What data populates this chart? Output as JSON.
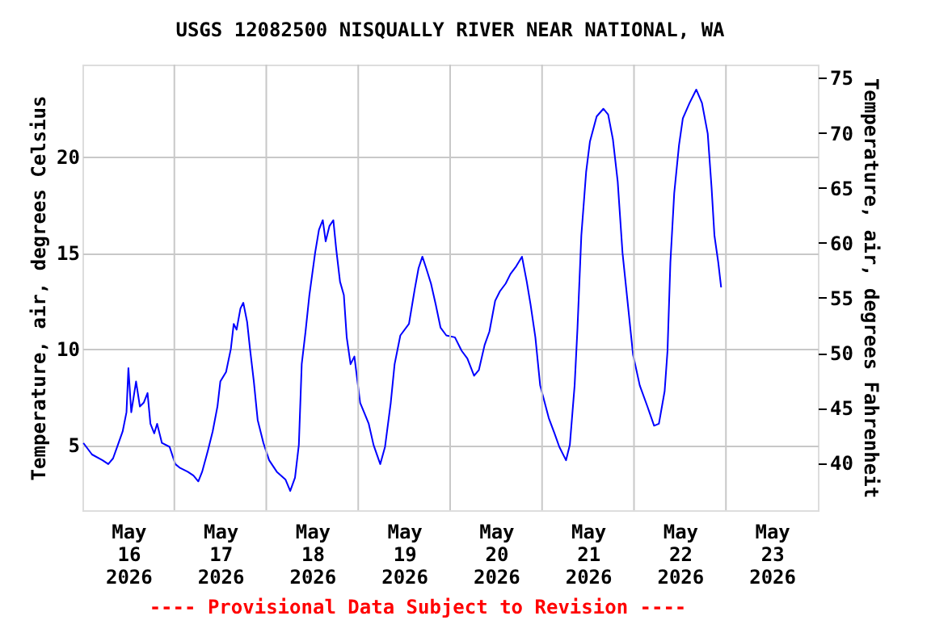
{
  "chart_data": {
    "type": "line",
    "title": "USGS 12082500 NISQUALLY RIVER NEAR NATIONAL, WA",
    "ylabel": "Temperature, air, degrees Celsius",
    "y2label": "Temperature, air, degrees Fahrenheit",
    "annotations": [
      "---- Provisional Data Subject to Revision ----"
    ],
    "xlim": [
      "2026-05-16T00:00",
      "2026-05-24T00:00"
    ],
    "xticks": [
      {
        "value": "2026-05-16T12:00",
        "label": "May\n16\n2026"
      },
      {
        "value": "2026-05-17T12:00",
        "label": "May\n17\n2026"
      },
      {
        "value": "2026-05-18T12:00",
        "label": "May\n18\n2026"
      },
      {
        "value": "2026-05-19T12:00",
        "label": "May\n19\n2026"
      },
      {
        "value": "2026-05-20T12:00",
        "label": "May\n20\n2026"
      },
      {
        "value": "2026-05-21T12:00",
        "label": "May\n21\n2026"
      },
      {
        "value": "2026-05-22T12:00",
        "label": "May\n22\n2026"
      },
      {
        "value": "2026-05-23T12:00",
        "label": "May\n23\n2026"
      },
      {
        "value": "2026-05-17T00:00",
        "label": null
      },
      {
        "value": "2026-05-18T00:00",
        "label": null
      },
      {
        "value": "2026-05-19T00:00",
        "label": null
      },
      {
        "value": "2026-05-20T00:00",
        "label": null
      },
      {
        "value": "2026-05-21T00:00",
        "label": null
      },
      {
        "value": "2026-05-22T00:00",
        "label": null
      },
      {
        "value": "2026-05-23T00:00",
        "label": null
      }
    ],
    "ylim": [
      1.6,
      24.8
    ],
    "yticks": [
      5,
      10,
      15,
      20
    ],
    "y2lim": [
      35.7,
      76.2
    ],
    "y2ticks": [
      40,
      45,
      50,
      55,
      60,
      65,
      70,
      75
    ],
    "grid": true,
    "legend": false,
    "marker": "none",
    "line_style": "solid",
    "x": [
      "2026-05-16T00:15",
      "2026-05-16T02:30",
      "2026-05-16T05:15",
      "2026-05-16T06:45",
      "2026-05-16T08:00",
      "2026-05-16T09:15",
      "2026-05-16T10:30",
      "2026-05-16T11:30",
      "2026-05-16T12:00",
      "2026-05-16T12:45",
      "2026-05-16T14:00",
      "2026-05-16T15:00",
      "2026-05-16T16:00",
      "2026-05-16T17:00",
      "2026-05-16T17:45",
      "2026-05-16T18:45",
      "2026-05-16T19:30",
      "2026-05-16T20:45",
      "2026-05-16T22:45",
      "2026-05-17T00:15",
      "2026-05-17T01:30",
      "2026-05-17T03:30",
      "2026-05-17T05:00",
      "2026-05-17T06:15",
      "2026-05-17T07:15",
      "2026-05-17T08:45",
      "2026-05-17T10:00",
      "2026-05-17T11:15",
      "2026-05-17T12:00",
      "2026-05-17T13:30",
      "2026-05-17T14:45",
      "2026-05-17T15:30",
      "2026-05-17T16:15",
      "2026-05-17T17:15",
      "2026-05-17T18:00",
      "2026-05-17T19:00",
      "2026-05-17T19:45",
      "2026-05-17T20:45",
      "2026-05-17T21:45",
      "2026-05-17T23:15",
      "2026-05-18T00:45",
      "2026-05-18T02:45",
      "2026-05-18T05:00",
      "2026-05-18T06:15",
      "2026-05-18T07:30",
      "2026-05-18T08:30",
      "2026-05-18T09:15",
      "2026-05-18T10:15",
      "2026-05-18T11:15",
      "2026-05-18T12:45",
      "2026-05-18T13:45",
      "2026-05-18T14:45",
      "2026-05-18T15:30",
      "2026-05-18T16:30",
      "2026-05-18T17:30",
      "2026-05-18T18:15",
      "2026-05-18T19:15",
      "2026-05-18T20:15",
      "2026-05-18T21:00",
      "2026-05-18T22:00",
      "2026-05-18T23:00",
      "2026-05-19T00:30",
      "2026-05-19T02:45",
      "2026-05-19T04:00",
      "2026-05-19T05:45",
      "2026-05-19T07:00",
      "2026-05-19T08:30",
      "2026-05-19T09:30",
      "2026-05-19T11:00",
      "2026-05-19T13:15",
      "2026-05-19T14:45",
      "2026-05-19T15:45",
      "2026-05-19T16:45",
      "2026-05-19T17:45",
      "2026-05-19T19:00",
      "2026-05-19T20:15",
      "2026-05-19T21:30",
      "2026-05-19T23:00",
      "2026-05-20T01:15",
      "2026-05-20T03:00",
      "2026-05-20T04:30",
      "2026-05-20T06:15",
      "2026-05-20T07:30",
      "2026-05-20T09:00",
      "2026-05-20T10:15",
      "2026-05-20T11:45",
      "2026-05-20T13:00",
      "2026-05-20T14:30",
      "2026-05-20T15:45",
      "2026-05-20T17:15",
      "2026-05-20T18:45",
      "2026-05-20T20:00",
      "2026-05-20T21:00",
      "2026-05-20T22:15",
      "2026-05-20T23:30",
      "2026-05-21T01:45",
      "2026-05-21T03:15",
      "2026-05-21T04:30",
      "2026-05-21T06:15",
      "2026-05-21T07:15",
      "2026-05-21T08:30",
      "2026-05-21T09:15",
      "2026-05-21T10:15",
      "2026-05-21T11:30",
      "2026-05-21T12:30",
      "2026-05-21T14:15",
      "2026-05-21T16:00",
      "2026-05-21T17:15",
      "2026-05-21T18:30",
      "2026-05-21T19:45",
      "2026-05-21T21:00",
      "2026-05-21T22:15",
      "2026-05-21T23:45",
      "2026-05-22T01:30",
      "2026-05-22T03:30",
      "2026-05-22T05:15",
      "2026-05-22T06:30",
      "2026-05-22T08:00",
      "2026-05-22T08:45",
      "2026-05-22T09:30",
      "2026-05-22T10:30",
      "2026-05-22T11:45",
      "2026-05-22T12:45",
      "2026-05-22T14:30",
      "2026-05-22T16:15",
      "2026-05-22T17:45",
      "2026-05-22T19:15",
      "2026-05-22T20:15",
      "2026-05-22T21:00",
      "2026-05-22T22:00",
      "2026-05-22T22:45"
    ],
    "series": [
      {
        "color": "#0000ff",
        "values": [
          5.1,
          4.5,
          4.2,
          4.0,
          4.3,
          5.0,
          5.7,
          6.7,
          9.0,
          6.7,
          8.3,
          7.0,
          7.2,
          7.7,
          6.1,
          5.6,
          6.1,
          5.1,
          4.9,
          4.0,
          3.8,
          3.6,
          3.4,
          3.1,
          3.6,
          4.7,
          5.7,
          7.0,
          8.3,
          8.8,
          10.0,
          11.3,
          11.0,
          12.1,
          12.4,
          11.4,
          10.0,
          8.3,
          6.3,
          5.1,
          4.2,
          3.6,
          3.2,
          2.6,
          3.3,
          5.0,
          9.2,
          10.9,
          12.8,
          15.0,
          16.2,
          16.7,
          15.6,
          16.4,
          16.7,
          15.2,
          13.5,
          12.8,
          10.6,
          9.2,
          9.6,
          7.2,
          6.1,
          5.0,
          4.0,
          4.9,
          7.2,
          9.2,
          10.7,
          11.3,
          13.1,
          14.2,
          14.8,
          14.2,
          13.4,
          12.3,
          11.1,
          10.7,
          10.6,
          9.9,
          9.5,
          8.6,
          8.9,
          10.2,
          10.9,
          12.5,
          13.0,
          13.4,
          13.9,
          14.3,
          14.8,
          13.5,
          12.3,
          10.6,
          8.1,
          6.4,
          5.6,
          4.9,
          4.2,
          5.0,
          8.1,
          11.1,
          15.9,
          19.2,
          20.8,
          22.1,
          22.5,
          22.2,
          20.9,
          18.7,
          15.0,
          12.6,
          9.7,
          8.1,
          7.0,
          6.0,
          6.1,
          7.8,
          9.9,
          14.5,
          18.1,
          20.6,
          22.0,
          22.8,
          23.5,
          22.8,
          21.2,
          18.4,
          15.9,
          14.5,
          13.2
        ]
      }
    ]
  }
}
